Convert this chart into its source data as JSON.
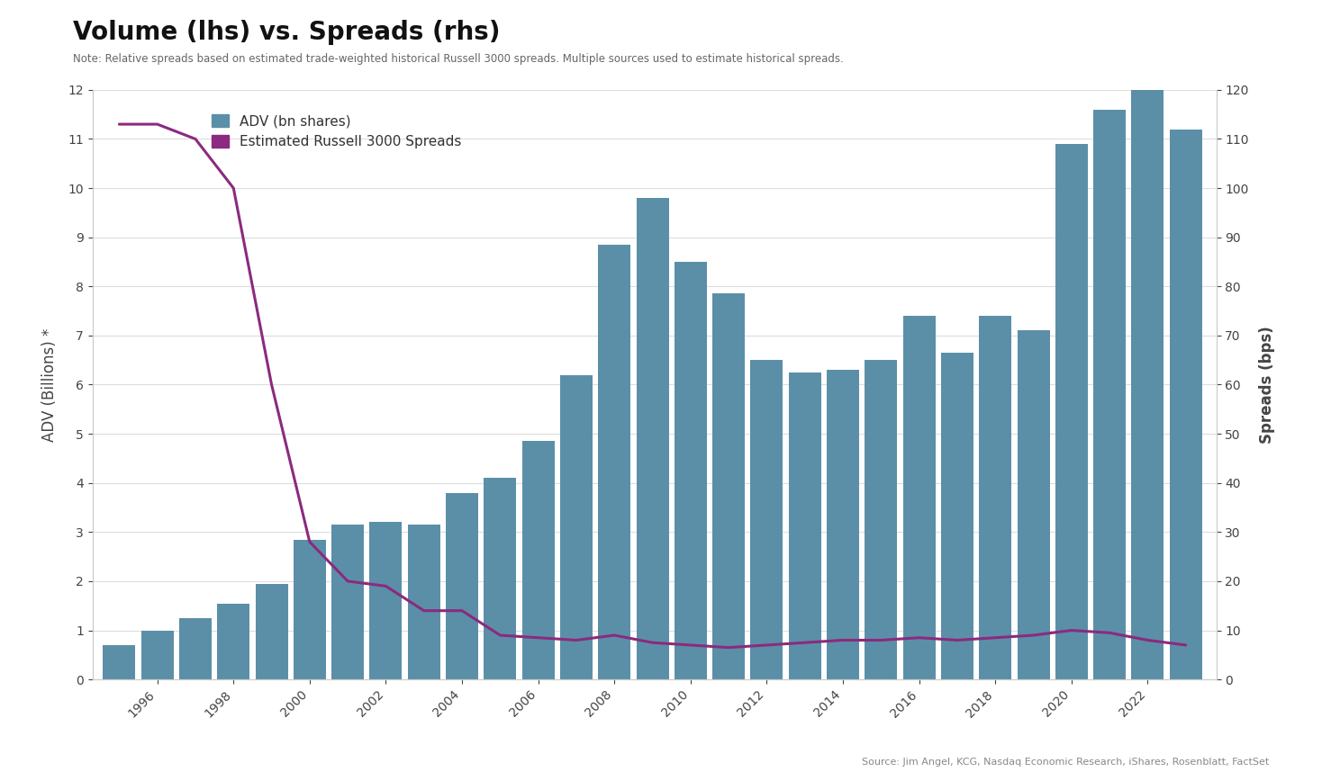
{
  "title": "Volume (lhs) vs. Spreads (rhs)",
  "note": "Note: Relative spreads based on estimated trade-weighted historical Russell 3000 spreads. Multiple sources used to estimate historical spreads.",
  "source": "Source: Jim Angel, KCG, Nasdaq Economic Research, iShares, Rosenblatt, FactSet",
  "ylabel_left": "ADV (Billions) *",
  "ylabel_right": "Spreads (bps)",
  "legend_adv": "ADV (bn shares)",
  "legend_spread": "Estimated Russell 3000 Spreads",
  "years": [
    1995,
    1996,
    1997,
    1998,
    1999,
    2000,
    2001,
    2002,
    2003,
    2004,
    2005,
    2006,
    2007,
    2008,
    2009,
    2010,
    2011,
    2012,
    2013,
    2014,
    2015,
    2016,
    2017,
    2018,
    2019,
    2020,
    2021,
    2022,
    2023
  ],
  "adv": [
    0.7,
    1.0,
    1.25,
    1.55,
    1.95,
    2.85,
    3.15,
    3.2,
    3.15,
    3.8,
    4.1,
    4.85,
    6.2,
    8.85,
    9.8,
    8.5,
    7.85,
    6.5,
    6.25,
    6.3,
    6.5,
    7.4,
    6.65,
    7.4,
    7.1,
    10.9,
    11.6,
    12.3,
    11.2
  ],
  "spreads_bps": [
    113,
    113,
    110,
    100,
    60,
    28,
    20,
    19,
    14,
    14,
    9,
    8.5,
    8,
    9,
    7.5,
    7,
    6.5,
    7,
    7.5,
    8,
    8,
    8.5,
    8,
    8.5,
    9,
    10,
    9.5,
    8,
    7
  ],
  "bar_color": "#5b8fa8",
  "line_color": "#8B2A7E",
  "background_color": "#ffffff",
  "plot_bg_color": "#ffffff",
  "ylim_left": [
    0,
    12
  ],
  "ylim_right": [
    0,
    120
  ],
  "yticks_left": [
    0,
    1,
    2,
    3,
    4,
    5,
    6,
    7,
    8,
    9,
    10,
    11,
    12
  ],
  "yticks_right": [
    0,
    10,
    20,
    30,
    40,
    50,
    60,
    70,
    80,
    90,
    100,
    110,
    120
  ],
  "x_tick_years": [
    1996,
    1998,
    2000,
    2002,
    2004,
    2006,
    2008,
    2010,
    2012,
    2014,
    2016,
    2018,
    2020,
    2022
  ]
}
